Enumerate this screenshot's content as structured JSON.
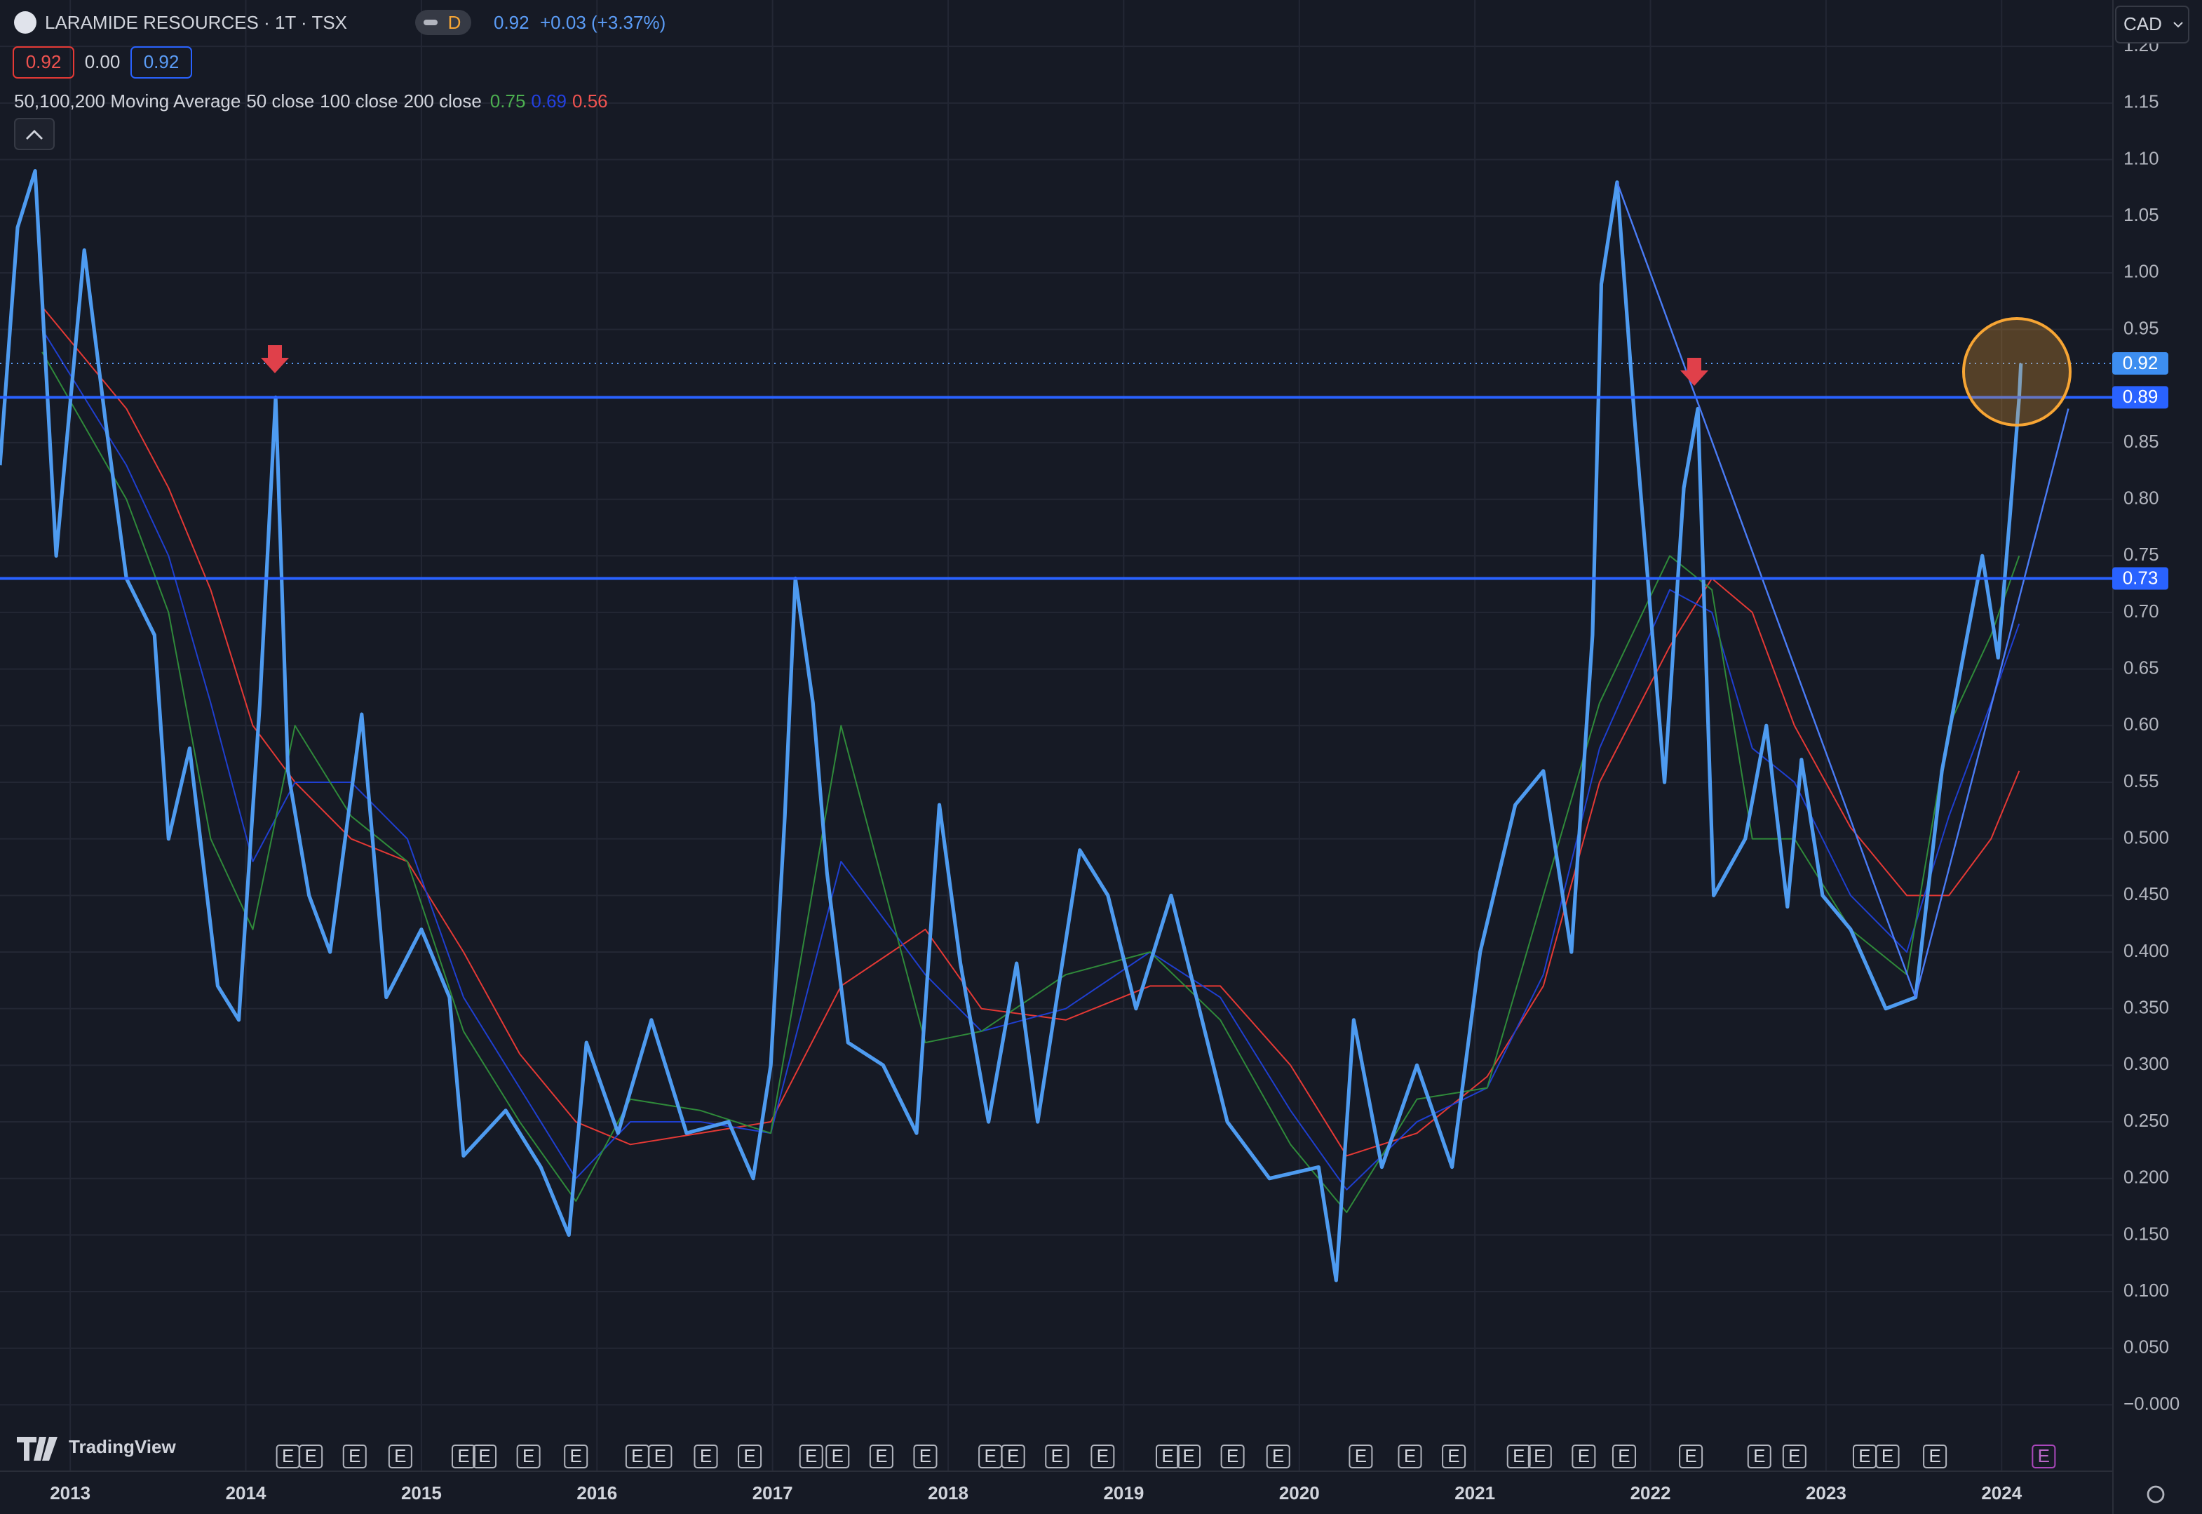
{
  "header": {
    "last": "0.92",
    "change": "+0.03 (+3.37%)",
    "interval_badge": "D",
    "ohlc_boxes": [
      "0.92",
      "0.00",
      "0.92"
    ],
    "indicator_title": "50,100,200 Moving Average"
  },
  "currency": "CAD",
  "brand": "TradingView",
  "chart_data": {
    "type": "line",
    "title": "LARAMIDE RESOURCES · 1T · TSX",
    "xlim": [
      2012.6,
      2024.63
    ],
    "xticks": [
      2013,
      2014,
      2015,
      2016,
      2017,
      2018,
      2019,
      2020,
      2021,
      2022,
      2023,
      2024
    ],
    "ylim": [
      -0.058,
      1.241
    ],
    "yticks": [
      {
        "value": 0,
        "label": "−0.000"
      },
      {
        "value": 0.05,
        "label": "0.050"
      },
      {
        "value": 0.1,
        "label": "0.100"
      },
      {
        "value": 0.15,
        "label": "0.150"
      },
      {
        "value": 0.2,
        "label": "0.200"
      },
      {
        "value": 0.25,
        "label": "0.250"
      },
      {
        "value": 0.3,
        "label": "0.300"
      },
      {
        "value": 0.35,
        "label": "0.350"
      },
      {
        "value": 0.4,
        "label": "0.400"
      },
      {
        "value": 0.45,
        "label": "0.450"
      },
      {
        "value": 0.5,
        "label": "0.500"
      },
      0.55,
      {
        "value": 0.6,
        "label": "0.60"
      },
      0.65,
      {
        "value": 0.7,
        "label": "0.70"
      },
      0.75,
      {
        "value": 0.8,
        "label": "0.80"
      },
      0.85,
      0.95,
      {
        "value": 1,
        "label": "1.00"
      },
      1.05,
      {
        "value": 1.1,
        "label": "1.10"
      },
      1.15,
      {
        "value": 1.2,
        "label": "1.20"
      }
    ],
    "grid": true,
    "last_price": 0.92,
    "hlines": [
      0.89,
      0.73
    ],
    "series": [
      {
        "color": "#4e9bf0",
        "x": [
          2012.6,
          2012.7,
          2012.8,
          2012.92,
          2013.08,
          2013.2,
          2013.32,
          2013.48,
          2013.56,
          2013.68,
          2013.84,
          2013.96,
          2014.08,
          2014.17,
          2014.24,
          2014.36,
          2014.48,
          2014.66,
          2014.8,
          2015.0,
          2015.16,
          2015.24,
          2015.48,
          2015.68,
          2015.84,
          2015.94,
          2016.12,
          2016.31,
          2016.51,
          2016.75,
          2016.89,
          2016.99,
          2017.07,
          2017.13,
          2017.23,
          2017.31,
          2017.43,
          2017.63,
          2017.82,
          2017.95,
          2018.07,
          2018.23,
          2018.39,
          2018.51,
          2018.75,
          2018.91,
          2019.07,
          2019.27,
          2019.43,
          2019.59,
          2019.83,
          2020.11,
          2020.21,
          2020.31,
          2020.47,
          2020.67,
          2020.87,
          2021.03,
          2021.23,
          2021.39,
          2021.55,
          2021.67,
          2021.72,
          2021.81,
          2021.91,
          2021.99,
          2022.08,
          2022.19,
          2022.27,
          2022.36,
          2022.54,
          2022.66,
          2022.78,
          2022.86,
          2022.98,
          2023.14,
          2023.34,
          2023.51,
          2023.66,
          2023.78,
          2023.89,
          2023.98,
          2024.05,
          2024.1,
          2024.11
        ],
        "values": [
          0.83,
          1.04,
          1.09,
          0.75,
          1.02,
          0.87,
          0.73,
          0.68,
          0.5,
          0.58,
          0.37,
          0.34,
          0.62,
          0.89,
          0.56,
          0.45,
          0.4,
          0.61,
          0.36,
          0.42,
          0.36,
          0.22,
          0.26,
          0.21,
          0.15,
          0.32,
          0.24,
          0.34,
          0.24,
          0.25,
          0.2,
          0.3,
          0.52,
          0.73,
          0.62,
          0.47,
          0.32,
          0.3,
          0.24,
          0.53,
          0.39,
          0.25,
          0.39,
          0.25,
          0.49,
          0.45,
          0.35,
          0.45,
          0.35,
          0.25,
          0.2,
          0.21,
          0.11,
          0.34,
          0.21,
          0.3,
          0.21,
          0.4,
          0.53,
          0.56,
          0.4,
          0.68,
          0.99,
          1.08,
          0.87,
          0.72,
          0.55,
          0.81,
          0.88,
          0.45,
          0.5,
          0.6,
          0.44,
          0.57,
          0.45,
          0.42,
          0.35,
          0.36,
          0.56,
          0.66,
          0.75,
          0.66,
          0.79,
          0.89,
          0.92
        ]
      },
      {
        "name": "50 close",
        "color": "#2f8a3a",
        "last": 0.75,
        "x": [
          2012.84,
          2013.32,
          2013.56,
          2013.8,
          2014.04,
          2014.28,
          2014.6,
          2014.92,
          2015.24,
          2015.56,
          2015.88,
          2016.19,
          2016.59,
          2016.99,
          2017.39,
          2017.87,
          2018.19,
          2018.67,
          2019.15,
          2019.55,
          2019.95,
          2020.27,
          2020.67,
          2021.07,
          2021.39,
          2021.71,
          2022.11,
          2022.35,
          2022.58,
          2022.82,
          2023.14,
          2023.46,
          2023.7,
          2023.94,
          2024.1
        ],
        "values": [
          0.93,
          0.8,
          0.7,
          0.5,
          0.42,
          0.6,
          0.52,
          0.48,
          0.33,
          0.25,
          0.18,
          0.27,
          0.26,
          0.24,
          0.6,
          0.32,
          0.33,
          0.38,
          0.4,
          0.34,
          0.23,
          0.17,
          0.27,
          0.28,
          0.45,
          0.62,
          0.75,
          0.72,
          0.5,
          0.5,
          0.42,
          0.38,
          0.6,
          0.68,
          0.75
        ]
      },
      {
        "name": "100 close",
        "color": "#1f3fd0",
        "last": 0.69,
        "x": [
          2012.84,
          2013.32,
          2013.56,
          2013.8,
          2014.04,
          2014.28,
          2014.6,
          2014.92,
          2015.24,
          2015.56,
          2015.88,
          2016.19,
          2016.59,
          2016.99,
          2017.39,
          2017.87,
          2018.19,
          2018.67,
          2019.15,
          2019.55,
          2019.95,
          2020.27,
          2020.67,
          2021.07,
          2021.39,
          2021.71,
          2022.11,
          2022.35,
          2022.58,
          2022.82,
          2023.14,
          2023.46,
          2023.7,
          2023.94,
          2024.1
        ],
        "values": [
          0.95,
          0.83,
          0.75,
          0.62,
          0.48,
          0.55,
          0.55,
          0.5,
          0.36,
          0.28,
          0.2,
          0.25,
          0.25,
          0.24,
          0.48,
          0.38,
          0.33,
          0.35,
          0.4,
          0.36,
          0.26,
          0.19,
          0.25,
          0.28,
          0.38,
          0.58,
          0.72,
          0.7,
          0.58,
          0.55,
          0.45,
          0.4,
          0.52,
          0.62,
          0.69
        ]
      },
      {
        "name": "200 close",
        "color": "#e53935",
        "last": 0.56,
        "x": [
          2012.84,
          2013.32,
          2013.56,
          2013.8,
          2014.04,
          2014.28,
          2014.6,
          2014.92,
          2015.24,
          2015.56,
          2015.88,
          2016.19,
          2016.59,
          2016.99,
          2017.39,
          2017.87,
          2018.19,
          2018.67,
          2019.15,
          2019.55,
          2019.95,
          2020.27,
          2020.67,
          2021.07,
          2021.39,
          2021.71,
          2022.11,
          2022.35,
          2022.58,
          2022.82,
          2023.14,
          2023.46,
          2023.7,
          2023.94,
          2024.1
        ],
        "values": [
          0.97,
          0.88,
          0.81,
          0.72,
          0.6,
          0.55,
          0.5,
          0.48,
          0.4,
          0.31,
          0.25,
          0.23,
          0.24,
          0.25,
          0.37,
          0.42,
          0.35,
          0.34,
          0.37,
          0.37,
          0.3,
          0.22,
          0.24,
          0.29,
          0.37,
          0.55,
          0.67,
          0.73,
          0.7,
          0.6,
          0.51,
          0.45,
          0.45,
          0.5,
          0.56
        ]
      }
    ],
    "trendlines": [
      {
        "x": [
          2021.81,
          2023.51
        ],
        "y": [
          1.08,
          0.36
        ]
      },
      {
        "x": [
          2023.51,
          2024.38
        ],
        "y": [
          0.36,
          0.88
        ]
      }
    ],
    "earnings_label": "E",
    "earnings_x": [
      2014.24,
      2014.37,
      2014.62,
      2014.88,
      2015.24,
      2015.36,
      2015.61,
      2015.88,
      2016.23,
      2016.36,
      2016.62,
      2016.87,
      2017.22,
      2017.37,
      2017.62,
      2017.87,
      2018.24,
      2018.37,
      2018.62,
      2018.88,
      2019.25,
      2019.37,
      2019.62,
      2019.88,
      2020.35,
      2020.63,
      2020.88,
      2021.25,
      2021.37,
      2021.62,
      2021.85,
      2022.23,
      2022.62,
      2022.82,
      2023.22,
      2023.35,
      2023.62,
      2024.24
    ]
  }
}
